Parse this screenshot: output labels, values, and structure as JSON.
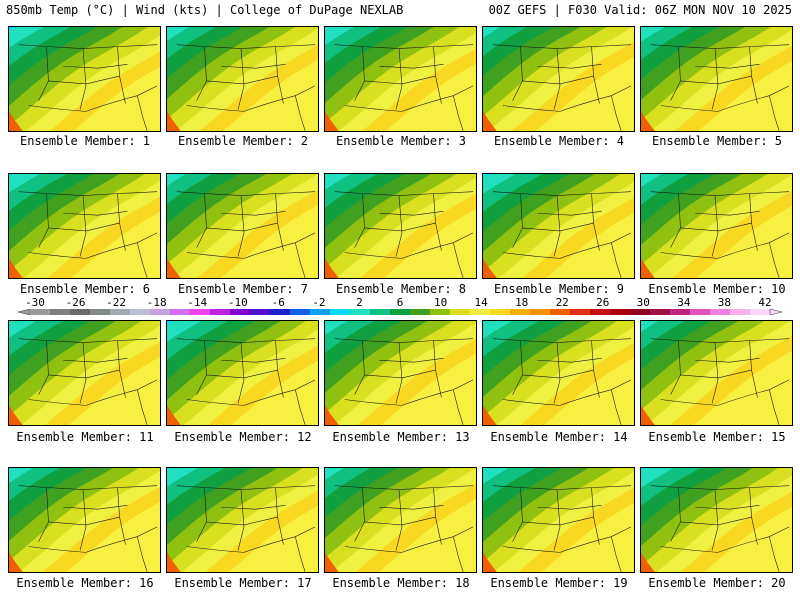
{
  "header": {
    "left": "850mb Temp (°C) | Wind (kts) | College of DuPage NEXLAB",
    "right": "00Z GEFS | F030 Valid: 06Z MON NOV 10 2025"
  },
  "panels": [
    {
      "label": "Ensemble Member: 1"
    },
    {
      "label": "Ensemble Member: 2"
    },
    {
      "label": "Ensemble Member: 3"
    },
    {
      "label": "Ensemble Member: 4"
    },
    {
      "label": "Ensemble Member: 5"
    },
    {
      "label": "Ensemble Member: 6"
    },
    {
      "label": "Ensemble Member: 7"
    },
    {
      "label": "Ensemble Member: 8"
    },
    {
      "label": "Ensemble Member: 9"
    },
    {
      "label": "Ensemble Member: 10"
    },
    {
      "label": "Ensemble Member: 11"
    },
    {
      "label": "Ensemble Member: 12"
    },
    {
      "label": "Ensemble Member: 13"
    },
    {
      "label": "Ensemble Member: 14"
    },
    {
      "label": "Ensemble Member: 15"
    },
    {
      "label": "Ensemble Member: 16"
    },
    {
      "label": "Ensemble Member: 17"
    },
    {
      "label": "Ensemble Member: 18"
    },
    {
      "label": "Ensemble Member: 19"
    },
    {
      "label": "Ensemble Member: 20"
    }
  ],
  "colorbar": {
    "tick_labels": [
      "-30",
      "-26",
      "-22",
      "-18",
      "-14",
      "-10",
      "-6",
      "-2",
      "2",
      "6",
      "10",
      "14",
      "18",
      "22",
      "26",
      "30",
      "34",
      "38",
      "42"
    ],
    "colors": [
      "#9a9a9a",
      "#808080",
      "#6a6a6a",
      "#808888",
      "#a0a8b0",
      "#b8c0d0",
      "#c8a0e0",
      "#d070f0",
      "#f040f0",
      "#c020e0",
      "#8000d0",
      "#5010d0",
      "#2020c8",
      "#1060e0",
      "#10a0f0",
      "#10d8f0",
      "#20e0c0",
      "#10c080",
      "#10a040",
      "#40a020",
      "#90c010",
      "#d8e020",
      "#f0f040",
      "#f8d820",
      "#f8b000",
      "#f89000",
      "#f06000",
      "#e03010",
      "#c81010",
      "#a80010",
      "#900020",
      "#a01040",
      "#c02080",
      "#e050c0",
      "#f080e0",
      "#f8b0f0",
      "#f8d8f8"
    ]
  }
}
